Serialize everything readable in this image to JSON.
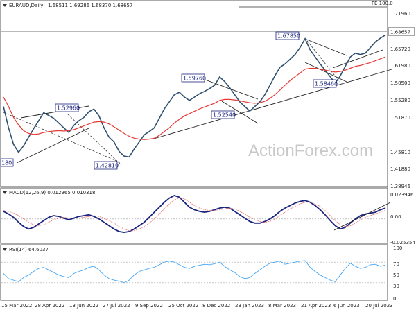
{
  "chart_data": [
    {
      "type": "line",
      "title": "EURAUD,Daily",
      "ohlc_header": "1.68511 1.69286 1.68370 1.68657",
      "fe_label": "FE 100.0",
      "watermark": "ActionForex.com",
      "ylim": [
        1.37,
        1.74
      ],
      "y_ticks": [
        "1.71960",
        "1.65720",
        "1.61980",
        "1.58500",
        "1.55280",
        "1.51870",
        "1.45810",
        "1.41880",
        "1.38946"
      ],
      "y_tick_values": [
        1.7196,
        1.6572,
        1.6198,
        1.585,
        1.5528,
        1.5187,
        1.4581,
        1.4188,
        1.38946
      ],
      "x_ticks": [
        "15 Mar 2022",
        "28 Apr 2022",
        "13 Jun 2022",
        "27 Jul 2022",
        "9 Sep 2022",
        "25 Oct 2022",
        "8 Dec 2022",
        "23 Jan 2023",
        "8 Mar 2023",
        "21 Apr 2023",
        "6 Jun 2023",
        "20 Jul 2023"
      ],
      "last_price": "1.68657",
      "last_value": 1.68657,
      "series": [
        {
          "values": [
            1.535,
            1.49,
            1.455,
            1.438,
            1.452,
            1.47,
            1.488,
            1.505,
            1.522,
            1.516,
            1.51,
            1.5,
            1.49,
            1.48,
            1.495,
            1.505,
            1.512,
            1.524,
            1.5296,
            1.515,
            1.49,
            1.47,
            1.46,
            1.44,
            1.43,
            1.4281,
            1.445,
            1.46,
            1.475,
            1.482,
            1.49,
            1.51,
            1.53,
            1.545,
            1.56,
            1.565,
            1.555,
            1.548,
            1.555,
            1.562,
            1.567,
            1.573,
            1.58,
            1.5976,
            1.588,
            1.575,
            1.56,
            1.545,
            1.535,
            1.5254,
            1.535,
            1.545,
            1.56,
            1.58,
            1.6,
            1.618,
            1.625,
            1.635,
            1.645,
            1.66,
            1.6785,
            1.655,
            1.64,
            1.625,
            1.612,
            1.598,
            1.5846,
            1.6,
            1.62,
            1.64,
            1.648,
            1.645,
            1.648,
            1.66,
            1.672,
            1.68,
            1.68657
          ]
        },
        {
          "values": [
            1.555,
            1.535,
            1.512,
            1.496,
            1.484,
            1.478,
            1.476,
            1.477,
            1.48,
            1.482,
            1.483,
            1.484,
            1.483,
            1.484,
            1.486,
            1.49,
            1.494,
            1.498,
            1.502,
            1.503,
            1.502,
            1.498,
            1.492,
            1.485,
            1.478,
            1.472,
            1.468,
            1.466,
            1.465,
            1.466,
            1.468,
            1.474,
            1.482,
            1.49,
            1.5,
            1.508,
            1.515,
            1.52,
            1.525,
            1.53,
            1.534,
            1.538,
            1.542,
            1.548,
            1.55,
            1.55,
            1.549,
            1.547,
            1.545,
            1.543,
            1.542,
            1.543,
            1.546,
            1.552,
            1.56,
            1.57,
            1.58,
            1.59,
            1.598,
            1.606,
            1.614,
            1.616,
            1.616,
            1.614,
            1.612,
            1.61,
            1.608,
            1.609,
            1.612,
            1.616,
            1.62,
            1.622,
            1.625,
            1.628,
            1.632,
            1.636,
            1.64
          ]
        }
      ],
      "annotations": [
        "1.52960",
        "1.42810",
        "1.59760",
        "1.52540",
        "1.67850",
        "1.58460",
        "180"
      ]
    },
    {
      "type": "line",
      "title": "MACD(12,26,9) 0.012965 0.010318",
      "ylim": [
        -0.0275,
        0.028
      ],
      "y_ticks": [
        "0.023946",
        "0.00",
        "-0.025354"
      ],
      "y_tick_values": [
        0.023946,
        0,
        -0.025354
      ],
      "series": [
        {
          "values": [
            0.009,
            0.006,
            0.002,
            -0.004,
            -0.009,
            -0.012,
            -0.01,
            -0.006,
            -0.002,
            0.002,
            0.004,
            0.003,
            0.001,
            -0.001,
            0.001,
            0.003,
            0.004,
            0.005,
            0.003,
            0.0,
            -0.004,
            -0.008,
            -0.012,
            -0.015,
            -0.016,
            -0.015,
            -0.012,
            -0.008,
            -0.004,
            0.002,
            0.008,
            0.014,
            0.02,
            0.025,
            0.028,
            0.026,
            0.02,
            0.014,
            0.011,
            0.009,
            0.008,
            0.009,
            0.011,
            0.013,
            0.014,
            0.013,
            0.009,
            0.005,
            0.001,
            -0.003,
            -0.005,
            -0.005,
            -0.003,
            0.0,
            0.004,
            0.009,
            0.013,
            0.016,
            0.019,
            0.021,
            0.022,
            0.02,
            0.016,
            0.011,
            0.005,
            -0.002,
            -0.008,
            -0.012,
            -0.01,
            -0.005,
            0.0,
            0.004,
            0.006,
            0.007,
            0.008,
            0.011,
            0.013
          ]
        },
        {
          "values": [
            0.01,
            0.009,
            0.007,
            0.004,
            0.0,
            -0.004,
            -0.007,
            -0.008,
            -0.007,
            -0.004,
            -0.001,
            0.001,
            0.002,
            0.001,
            0.001,
            0.001,
            0.002,
            0.003,
            0.004,
            0.003,
            0.001,
            -0.002,
            -0.005,
            -0.009,
            -0.012,
            -0.014,
            -0.014,
            -0.012,
            -0.009,
            -0.005,
            0.0,
            0.006,
            0.012,
            0.018,
            0.023,
            0.025,
            0.024,
            0.02,
            0.016,
            0.013,
            0.011,
            0.01,
            0.01,
            0.011,
            0.012,
            0.013,
            0.012,
            0.009,
            0.006,
            0.002,
            -0.001,
            -0.003,
            -0.004,
            -0.003,
            0.0,
            0.004,
            0.008,
            0.012,
            0.015,
            0.018,
            0.02,
            0.02,
            0.018,
            0.015,
            0.01,
            0.004,
            -0.002,
            -0.007,
            -0.009,
            -0.008,
            -0.005,
            -0.001,
            0.002,
            0.004,
            0.006,
            0.008,
            0.0103
          ]
        }
      ]
    },
    {
      "type": "line",
      "title": "RSI(14) 64.6037",
      "ylim": [
        0,
        100
      ],
      "y_ticks": [
        "100",
        "70",
        "50",
        "30",
        "0"
      ],
      "y_tick_values": [
        100,
        70,
        50,
        30,
        0
      ],
      "series": [
        {
          "values": [
            48,
            38,
            35,
            32,
            40,
            45,
            52,
            58,
            60,
            55,
            50,
            45,
            42,
            40,
            48,
            52,
            55,
            60,
            62,
            55,
            45,
            38,
            35,
            33,
            30,
            35,
            45,
            52,
            55,
            58,
            60,
            65,
            70,
            72,
            70,
            65,
            60,
            58,
            62,
            64,
            66,
            65,
            67,
            70,
            62,
            55,
            50,
            42,
            38,
            40,
            48,
            55,
            62,
            68,
            70,
            72,
            66,
            68,
            70,
            72,
            73,
            60,
            52,
            45,
            40,
            35,
            32,
            45,
            58,
            68,
            62,
            58,
            60,
            65,
            66,
            62,
            64.6
          ]
        }
      ]
    }
  ]
}
